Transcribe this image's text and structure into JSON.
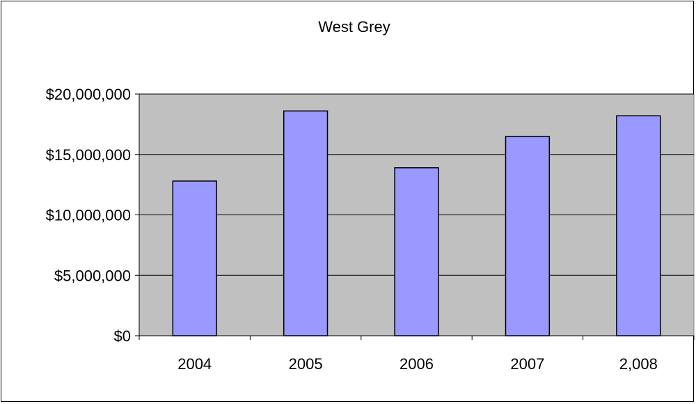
{
  "chart_data": {
    "type": "bar",
    "title": "West Grey",
    "xlabel": "",
    "ylabel": "",
    "categories": [
      "2004",
      "2005",
      "2006",
      "2007",
      "2,008"
    ],
    "values": [
      12800000,
      18600000,
      13900000,
      16500000,
      18200000
    ],
    "ylim": [
      0,
      20000000
    ],
    "yticks": [
      0,
      5000000,
      10000000,
      15000000,
      20000000
    ],
    "ytick_labels": [
      "$0",
      "$5,000,000",
      "$10,000,000",
      "$15,000,000",
      "$20,000,000"
    ],
    "grid": true,
    "legend": "none",
    "colors": {
      "bar_fill": "#9999ff",
      "bar_stroke": "#000000",
      "plot_background": "#c0c0c0",
      "gridline": "#000000"
    }
  }
}
